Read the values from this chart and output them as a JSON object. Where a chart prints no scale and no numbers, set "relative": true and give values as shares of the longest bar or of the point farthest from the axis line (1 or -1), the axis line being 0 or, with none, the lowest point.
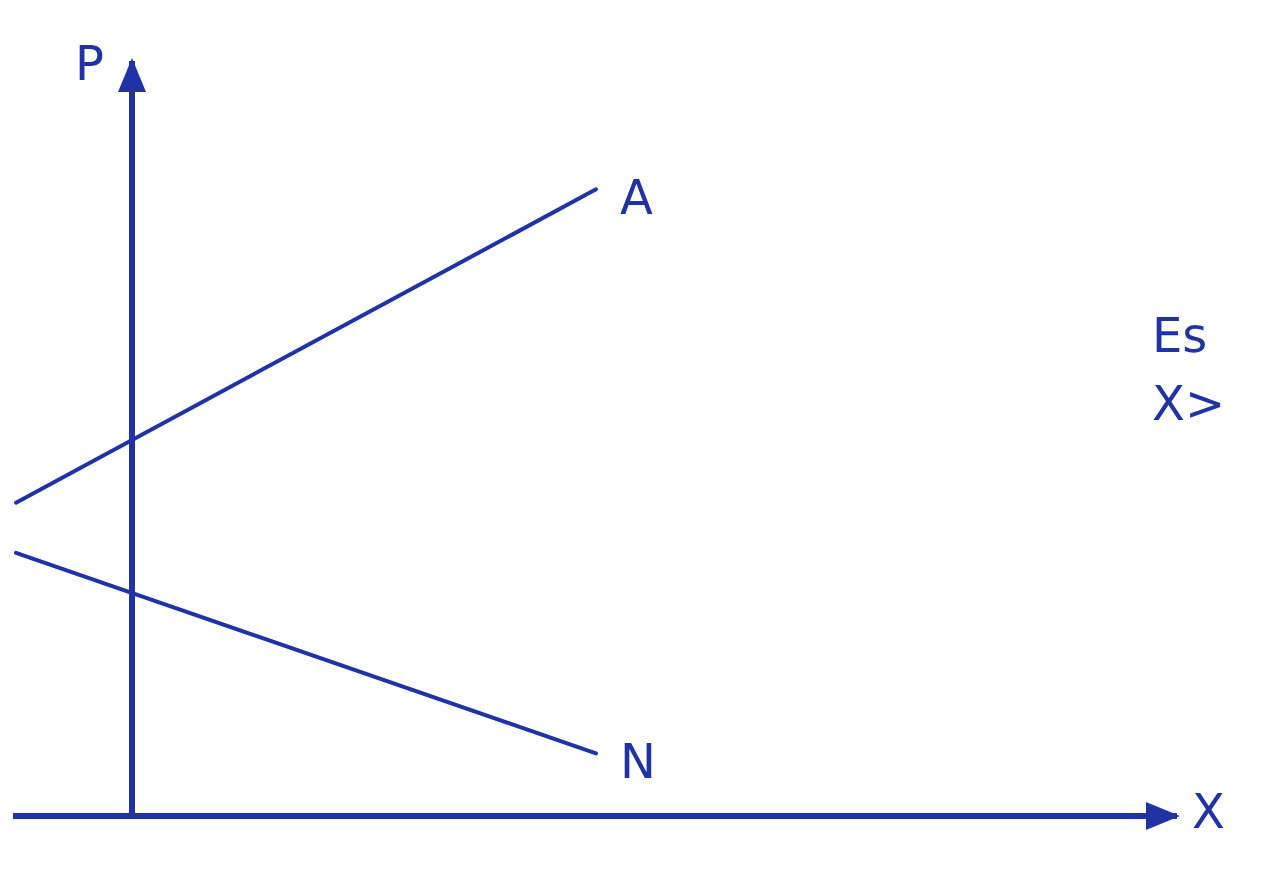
{
  "chart_data": {
    "type": "line",
    "xlabel": "X",
    "ylabel": "P",
    "relative": true,
    "categories": [
      null,
      null,
      null,
      null,
      null,
      null,
      null,
      null,
      null,
      null,
      null
    ],
    "series": [
      {
        "name": "A",
        "color": "#1f33a6",
        "values": [
          0.5,
          null,
          null,
          null,
          null,
          1.0,
          null,
          null,
          null,
          null,
          null
        ]
      },
      {
        "name": "N",
        "color": "#1f33a6",
        "values": [
          0.42,
          null,
          null,
          null,
          null,
          0.1,
          null,
          null,
          null,
          null,
          null
        ]
      }
    ],
    "annotations": [
      "Es",
      "X>"
    ],
    "grid": false,
    "legend": false,
    "marker": "none",
    "line_style": "solid"
  }
}
